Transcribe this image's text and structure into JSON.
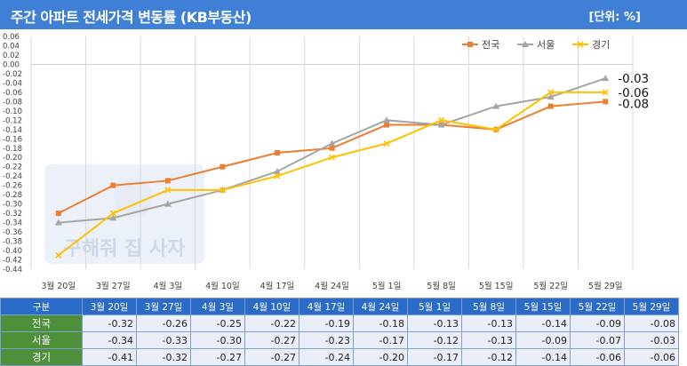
{
  "header": {
    "title": "주간 아파트 전세가격 변동률 (KB부동산)",
    "unit": "[단위: %]"
  },
  "watermark": {
    "text": "구해줘 집 사자"
  },
  "chart_data": {
    "type": "line",
    "categories": [
      "3월 20일",
      "3월 27일",
      "4월 3일",
      "4월 10일",
      "4월 17일",
      "4월 24일",
      "5월 1일",
      "5월 8일",
      "5월 15일",
      "5월 22일",
      "5월 29일"
    ],
    "series": [
      {
        "name": "전국",
        "color": "#ed7d31",
        "marker": "square",
        "values": [
          -0.32,
          -0.26,
          -0.25,
          -0.22,
          -0.19,
          -0.18,
          -0.13,
          -0.13,
          -0.14,
          -0.09,
          -0.08
        ]
      },
      {
        "name": "서울",
        "color": "#a5a5a5",
        "marker": "triangle",
        "values": [
          -0.34,
          -0.33,
          -0.3,
          -0.27,
          -0.23,
          -0.17,
          -0.12,
          -0.13,
          -0.09,
          -0.07,
          -0.03
        ]
      },
      {
        "name": "경기",
        "color": "#ffc000",
        "marker": "x",
        "values": [
          -0.41,
          -0.32,
          -0.27,
          -0.27,
          -0.24,
          -0.2,
          -0.17,
          -0.12,
          -0.14,
          -0.06,
          -0.06
        ]
      }
    ],
    "end_labels": [
      "-0.08",
      "-0.03",
      "-0.06"
    ],
    "yticks": [
      "0.06",
      "0.04",
      "0.02",
      "0.00",
      "-0.02",
      "-0.04",
      "-0.06",
      "-0.08",
      "-0.10",
      "-0.12",
      "-0.14",
      "-0.16",
      "-0.18",
      "-0.20",
      "-0.22",
      "-0.24",
      "-0.26",
      "-0.28",
      "-0.30",
      "-0.32",
      "-0.34",
      "-0.36",
      "-0.38",
      "-0.40",
      "-0.42",
      "-0.44"
    ],
    "ylim": [
      -0.44,
      0.06
    ],
    "grid": "vertical",
    "legend": "top-right"
  },
  "table": {
    "header_label": "구분",
    "dates": [
      "3월 20일",
      "3월 27일",
      "4월 3일",
      "4월 10일",
      "4월 17일",
      "4월 24일",
      "5월 1일",
      "5월 8일",
      "5월 15일",
      "5월 22일",
      "5월 29일"
    ],
    "rows": [
      {
        "label": "전국",
        "values": [
          "-0.32",
          "-0.26",
          "-0.25",
          "-0.22",
          "-0.19",
          "-0.18",
          "-0.13",
          "-0.13",
          "-0.14",
          "-0.09",
          "-0.08"
        ]
      },
      {
        "label": "서울",
        "values": [
          "-0.34",
          "-0.33",
          "-0.30",
          "-0.27",
          "-0.23",
          "-0.17",
          "-0.12",
          "-0.13",
          "-0.09",
          "-0.07",
          "-0.03"
        ]
      },
      {
        "label": "경기",
        "values": [
          "-0.41",
          "-0.32",
          "-0.27",
          "-0.27",
          "-0.24",
          "-0.20",
          "-0.17",
          "-0.12",
          "-0.14",
          "-0.06",
          "-0.06"
        ]
      }
    ]
  }
}
